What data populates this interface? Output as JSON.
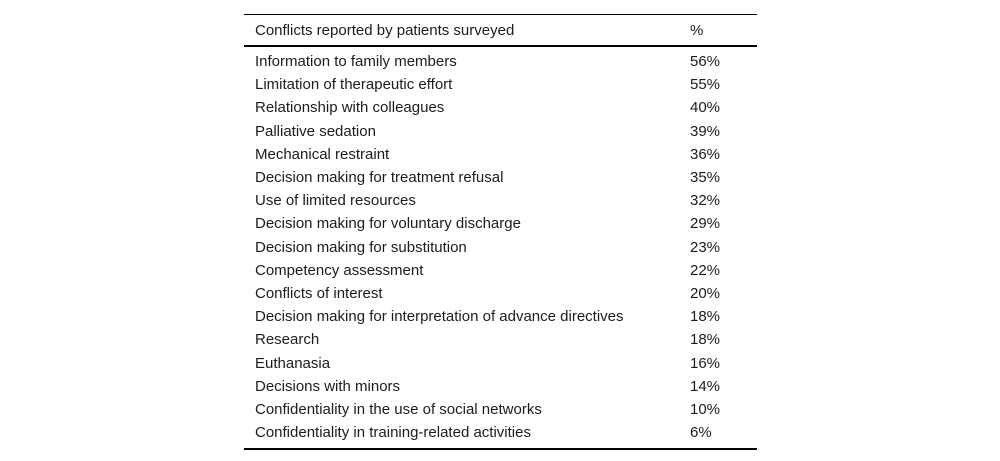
{
  "table": {
    "header": {
      "label": "Conflicts reported by patients surveyed",
      "value": "%"
    },
    "rows": [
      {
        "label": "Information to family members",
        "value": "56%"
      },
      {
        "label": "Limitation of therapeutic effort",
        "value": "55%"
      },
      {
        "label": "Relationship with colleagues",
        "value": "40%"
      },
      {
        "label": "Palliative sedation",
        "value": "39%"
      },
      {
        "label": "Mechanical restraint",
        "value": "36%"
      },
      {
        "label": "Decision making for treatment refusal",
        "value": "35%"
      },
      {
        "label": "Use of limited resources",
        "value": "32%"
      },
      {
        "label": "Decision making for voluntary discharge",
        "value": "29%"
      },
      {
        "label": "Decision making for substitution",
        "value": "23%"
      },
      {
        "label": "Competency assessment",
        "value": "22%"
      },
      {
        "label": "Conflicts of interest",
        "value": "20%"
      },
      {
        "label": "Decision making for interpretation of advance directives",
        "value": "18%"
      },
      {
        "label": "Research",
        "value": "18%"
      },
      {
        "label": "Euthanasia",
        "value": "16%"
      },
      {
        "label": "Decisions with minors",
        "value": "14%"
      },
      {
        "label": "Confidentiality in the use of social networks",
        "value": "10%"
      },
      {
        "label": "Confidentiality in training-related activities",
        "value": "6%"
      }
    ]
  },
  "colors": {
    "background": "#ffffff",
    "text": "#1c1c1c",
    "rule": "#000000"
  }
}
